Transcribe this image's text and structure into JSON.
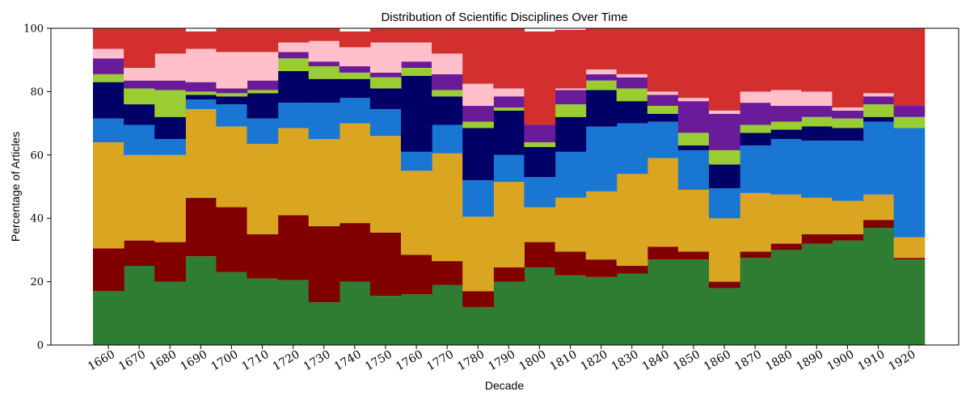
{
  "chart_data": {
    "type": "area",
    "title": "Distribution of Scientific Disciplines Over Time",
    "xlabel": "Decade",
    "ylabel": "Percentage of Articles",
    "ylim": [
      0,
      100
    ],
    "yticks": [
      "0",
      "20",
      "40",
      "60",
      "80",
      "100"
    ],
    "grid": false,
    "categories": [
      "1660",
      "1670",
      "1680",
      "1690",
      "1700",
      "1710",
      "1720",
      "1730",
      "1740",
      "1750",
      "1760",
      "1770",
      "1780",
      "1790",
      "1800",
      "1810",
      "1820",
      "1830",
      "1840",
      "1850",
      "1860",
      "1870",
      "1880",
      "1890",
      "1900",
      "1910",
      "1920"
    ],
    "series": [
      {
        "color": "#2e7d32",
        "values": [
          17,
          25,
          20,
          28,
          23,
          21,
          20.5,
          13.5,
          20,
          15.5,
          16,
          19,
          12,
          20,
          24.5,
          22,
          21.5,
          22.5,
          27,
          27,
          18,
          27.5,
          30,
          32,
          33,
          37,
          27
        ]
      },
      {
        "color": "#800000",
        "values": [
          13.5,
          8,
          12.5,
          18.5,
          20.5,
          14,
          20.5,
          24,
          18.5,
          20,
          12.5,
          7.5,
          5,
          4.5,
          8,
          7.5,
          5.5,
          2.5,
          4,
          2.5,
          2,
          2,
          2,
          3,
          2,
          2.5,
          0.5
        ]
      },
      {
        "color": "#daa520",
        "values": [
          33.5,
          27,
          27.5,
          28,
          25.5,
          28.5,
          27.5,
          27.5,
          31.5,
          30.5,
          26.5,
          34,
          23.5,
          27,
          11,
          17,
          21.5,
          29,
          28,
          19.5,
          20,
          18.5,
          15.5,
          11.5,
          10.5,
          8,
          6.5
        ]
      },
      {
        "color": "#1976d2",
        "values": [
          7.5,
          9.5,
          5,
          3,
          7,
          8,
          8,
          11.5,
          8,
          8.5,
          6,
          9,
          11.5,
          8.5,
          9.5,
          14.5,
          20.5,
          16,
          11.5,
          12.5,
          9.5,
          15,
          17.5,
          18,
          19,
          23,
          34.5
        ]
      },
      {
        "color": "#000066",
        "values": [
          11.5,
          6.5,
          7,
          1.5,
          2.5,
          8,
          10,
          7.5,
          6,
          6.5,
          24,
          9,
          16.5,
          14,
          9.5,
          11,
          11.5,
          7,
          2.5,
          1.5,
          7.5,
          4,
          3,
          4.5,
          4,
          1.5,
          0
        ]
      },
      {
        "color": "#9acd32",
        "values": [
          2.5,
          5,
          8.5,
          1,
          1,
          1,
          4,
          4,
          2,
          3.5,
          2.5,
          2,
          2,
          1,
          1.5,
          4,
          3,
          4,
          2.5,
          4,
          4.5,
          2.5,
          2.5,
          3,
          3,
          4,
          3.5
        ]
      },
      {
        "color": "#6a1b9a",
        "values": [
          5,
          2.5,
          3,
          3,
          1.5,
          3,
          2,
          1.5,
          2,
          1.5,
          2,
          5,
          5,
          3.5,
          5.5,
          4.5,
          2,
          3.5,
          3.5,
          10,
          11.5,
          7,
          5,
          3.5,
          2.5,
          2.5,
          3.5
        ]
      },
      {
        "color": "#ffc0cb",
        "values": [
          3,
          4,
          8.5,
          10.5,
          11.5,
          9,
          3,
          6.5,
          6,
          9.5,
          6,
          6.5,
          7,
          2.5,
          0,
          0.5,
          1.5,
          1,
          1,
          1,
          1,
          3.5,
          5,
          4.5,
          1,
          1,
          0
        ]
      },
      {
        "color": "#d32f2f",
        "values": [
          6.5,
          12.5,
          8,
          5.5,
          7.5,
          7.5,
          4.5,
          4,
          5,
          4.5,
          4.5,
          8,
          17.5,
          19,
          29.5,
          18.5,
          13,
          14.5,
          20,
          22,
          26,
          20,
          19.5,
          20,
          25,
          20.5,
          24.5
        ]
      }
    ]
  }
}
